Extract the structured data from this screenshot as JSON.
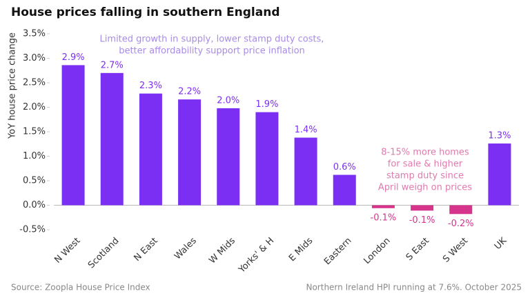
{
  "chart_data": {
    "type": "bar",
    "title": "House prices falling in southern England",
    "y_label": "YoY house price change",
    "categories": [
      "N West",
      "Scotland",
      "N East",
      "Wales",
      "W Mids",
      "Yorks' & H",
      "E Mids",
      "Eastern",
      "London",
      "S East",
      "S West",
      "UK"
    ],
    "values": [
      2.86,
      2.7,
      2.28,
      2.16,
      1.98,
      1.9,
      1.38,
      0.62,
      -0.06,
      -0.11,
      -0.18,
      1.26
    ],
    "value_labels": [
      "2.9%",
      "2.7%",
      "2.3%",
      "2.2%",
      "2.0%",
      "1.9%",
      "1.4%",
      "0.6%",
      "-0.1%",
      "-0.1%",
      "-0.2%",
      "1.3%"
    ],
    "colors": [
      "#7b2ff2",
      "#7b2ff2",
      "#7b2ff2",
      "#7b2ff2",
      "#7b2ff2",
      "#7b2ff2",
      "#7b2ff2",
      "#7b2ff2",
      "#d6338a",
      "#d6338a",
      "#d6338a",
      "#7b2ff2"
    ],
    "ylim": [
      -0.5,
      3.5
    ],
    "yticks": [
      {
        "value": -0.5,
        "label": "-0.5%"
      },
      {
        "value": 0,
        "label": "0.0%"
      },
      {
        "value": 0.5,
        "label": "0.5%"
      },
      {
        "value": 1,
        "label": "1.0%"
      },
      {
        "value": 1.5,
        "label": "1.5%"
      },
      {
        "value": 2,
        "label": "2.0%"
      },
      {
        "value": 2.5,
        "label": "2.5%"
      },
      {
        "value": 3,
        "label": "3.0%"
      },
      {
        "value": 3.5,
        "label": "3.5%"
      }
    ],
    "annotations": [
      {
        "lines": [
          "Limited growth in supply, lower stamp duty costs,",
          "better affordability support price inflation"
        ],
        "color": "#a98be8"
      },
      {
        "lines": [
          "8-15% more homes",
          "for sale & higher",
          "stamp duty since",
          "April weigh on prices"
        ],
        "color": "#e07aae"
      }
    ],
    "source": "Source: Zoopla House Price Index",
    "note": "Northern Ireland HPI running at 7.6%. October 2025"
  }
}
